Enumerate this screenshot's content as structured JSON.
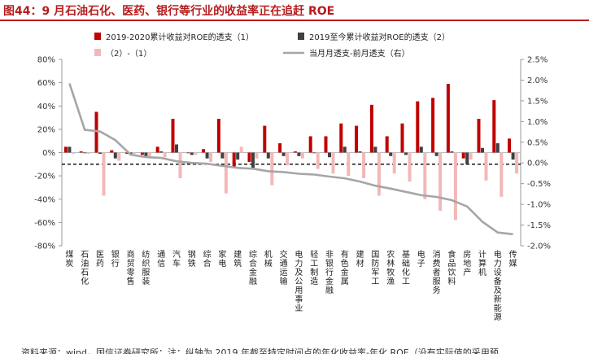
{
  "title": "图44：9 月石油石化、医药、银行等行业的收益率正在追赶 ROE",
  "footer": "资料来源：wind，国信证券研究所；注：纵轴为 2019 年截至特定时间点的年化收益率-年化 ROE（没有实际值的采用预",
  "colors": {
    "series1": "#c00000",
    "series2": "#404040",
    "series3": "#f2b8b8",
    "series4": "#a6a6a6",
    "title": "#b71c1c"
  },
  "chart_data": {
    "type": "bar",
    "categories": [
      "煤炭",
      "石油石化",
      "医药",
      "银行",
      "商贸零售",
      "纺织服装",
      "通信",
      "汽车",
      "钢铁",
      "综合",
      "家电",
      "建筑",
      "综合金融",
      "机械",
      "交通运输",
      "电力及公用事业",
      "轻工制造",
      "非银行金融",
      "有色金属",
      "建材",
      "国防军工",
      "农林牧渔",
      "基础化工",
      "电子",
      "消费者服务",
      "食品饮料",
      "房地产",
      "计算机",
      "电力设备及新能源",
      "传媒"
    ],
    "series": [
      {
        "name": "2019-2020累计收益对ROE的透支（1）",
        "axis": "left",
        "values": [
          5,
          1,
          35,
          2,
          -1,
          -2,
          5,
          29,
          0,
          3,
          29,
          -13,
          -8,
          23,
          8,
          1,
          14,
          14,
          25,
          23,
          41,
          14,
          25,
          44,
          47,
          59,
          -5,
          29,
          45,
          12
        ]
      },
      {
        "name": "2019至今累计收益对ROE的透支（2）",
        "axis": "left",
        "values": [
          5,
          0,
          -1,
          -5,
          -2,
          -3,
          1,
          7,
          -2,
          -5,
          -5,
          -6,
          -14,
          -5,
          -3,
          -3,
          0,
          -4,
          5,
          1,
          5,
          -3,
          -2,
          5,
          -3,
          1,
          -10,
          4,
          8,
          -6
        ]
      },
      {
        "name": "（2）-（1）",
        "axis": "left",
        "values": [
          -1,
          -1,
          -37,
          -7,
          -1,
          -5,
          -4,
          -22,
          -2,
          -8,
          -35,
          5,
          -5,
          -28,
          -11,
          -5,
          -14,
          -18,
          -20,
          -22,
          -37,
          -18,
          -25,
          -40,
          -50,
          -58,
          -6,
          -24,
          -38,
          -18
        ]
      },
      {
        "name": "当月月透支-前月透支（右）",
        "axis": "right",
        "type": "line",
        "values": [
          1.92,
          0.8,
          0.76,
          0.55,
          0.2,
          0.14,
          0.12,
          0.04,
          0.0,
          -0.02,
          -0.07,
          -0.12,
          -0.14,
          -0.2,
          -0.22,
          -0.26,
          -0.28,
          -0.33,
          -0.37,
          -0.45,
          -0.55,
          -0.62,
          -0.7,
          -0.78,
          -0.82,
          -0.9,
          -1.05,
          -1.42,
          -1.68,
          -1.72
        ]
      }
    ],
    "y_left": {
      "min": -80,
      "max": 80,
      "step": 20,
      "suffix": "%"
    },
    "y_right": {
      "min": -2.0,
      "max": 2.5,
      "step": 0.5,
      "suffix": "%"
    },
    "reference_line": {
      "value": -10,
      "style": "dashed"
    },
    "legend_placement": "top"
  }
}
